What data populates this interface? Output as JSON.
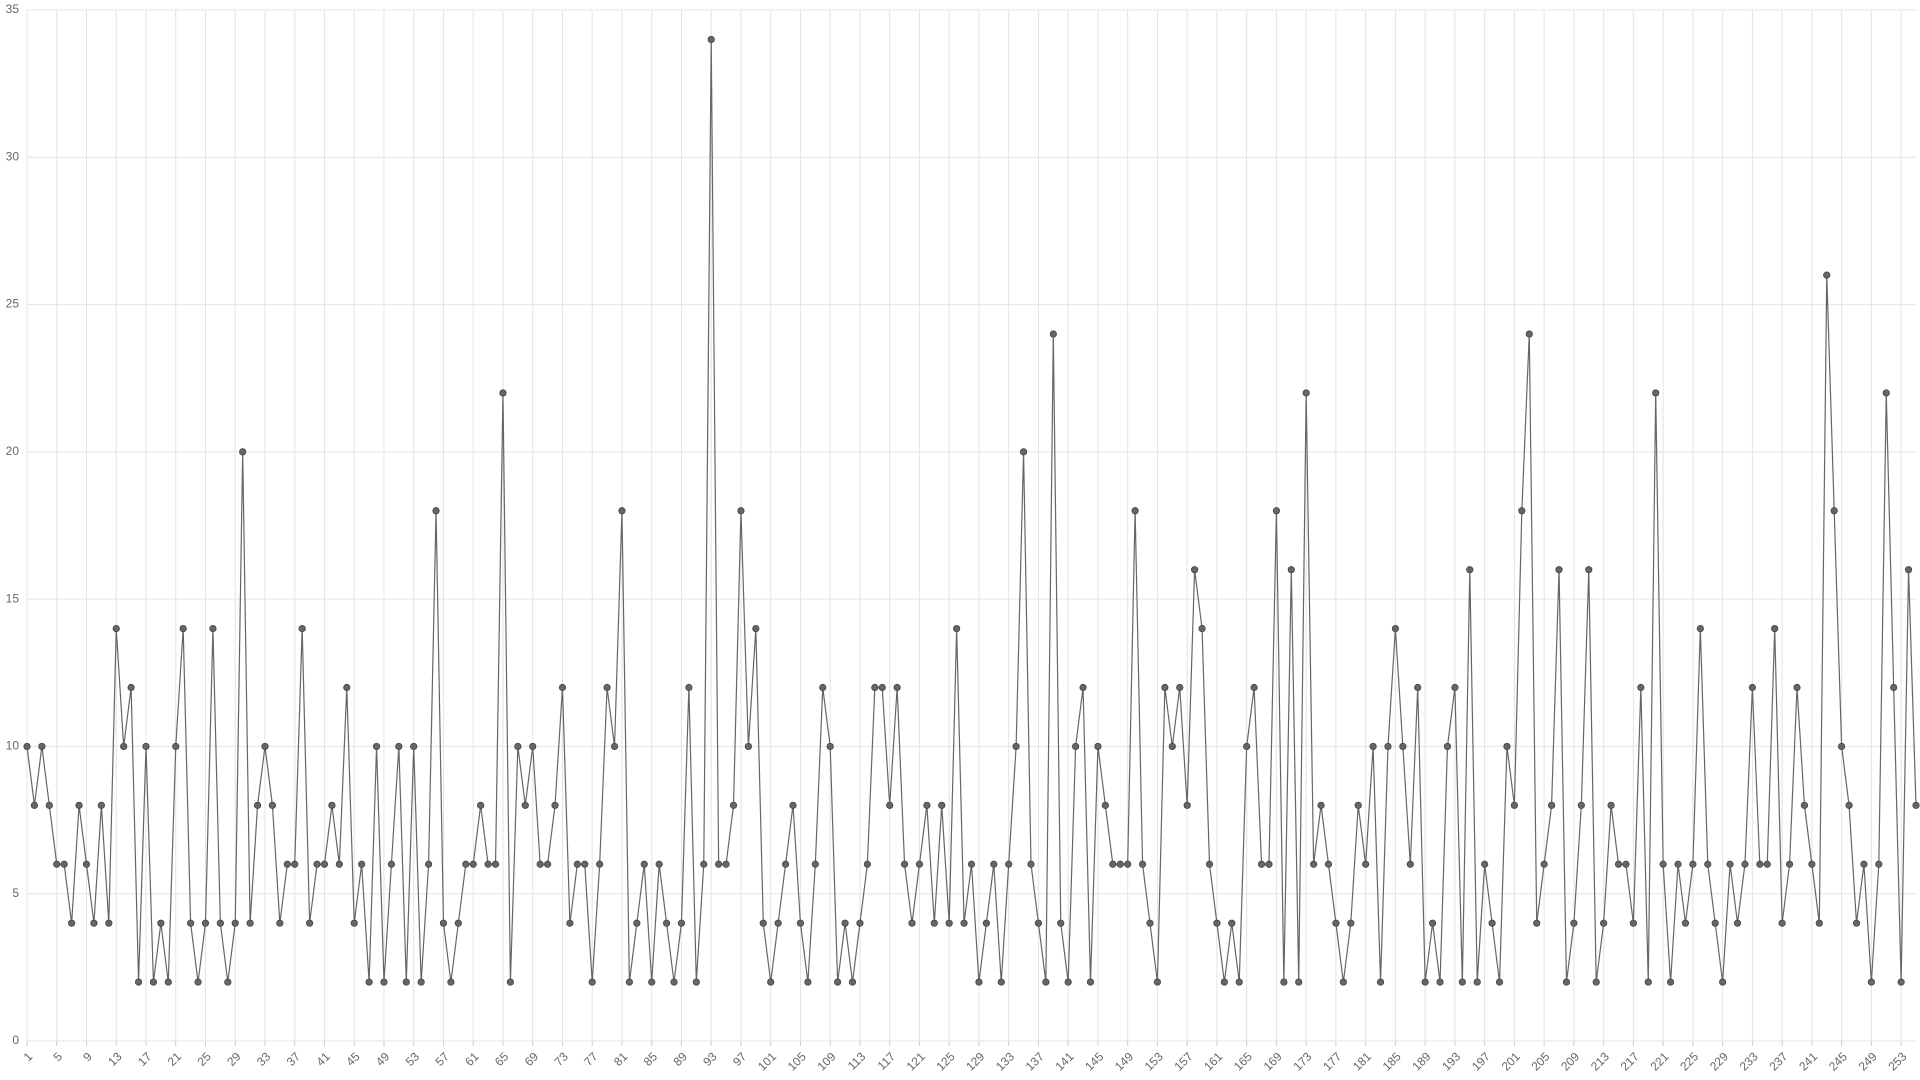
{
  "chart_data": {
    "type": "line",
    "x": [
      1,
      2,
      3,
      4,
      5,
      6,
      7,
      8,
      9,
      10,
      11,
      12,
      13,
      14,
      15,
      16,
      17,
      18,
      19,
      20,
      21,
      22,
      23,
      24,
      25,
      26,
      27,
      28,
      29,
      30,
      31,
      32,
      33,
      34,
      35,
      36,
      37,
      38,
      39,
      40,
      41,
      42,
      43,
      44,
      45,
      46,
      47,
      48,
      49,
      50,
      51,
      52,
      53,
      54,
      55,
      56,
      57,
      58,
      59,
      60,
      61,
      62,
      63,
      64,
      65,
      66,
      67,
      68,
      69,
      70,
      71,
      72,
      73,
      74,
      75,
      76,
      77,
      78,
      79,
      80,
      81,
      82,
      83,
      84,
      85,
      86,
      87,
      88,
      89,
      90,
      91,
      92,
      93,
      94,
      95,
      96,
      97,
      98,
      99,
      100,
      101,
      102,
      103,
      104,
      105,
      106,
      107,
      108,
      109,
      110,
      111,
      112,
      113,
      114,
      115,
      116,
      117,
      118,
      119,
      120,
      121,
      122,
      123,
      124,
      125,
      126,
      127,
      128,
      129,
      130,
      131,
      132,
      133,
      134,
      135,
      136,
      137,
      138,
      139,
      140,
      141,
      142,
      143,
      144,
      145,
      146,
      147,
      148,
      149,
      150,
      151,
      152,
      153,
      154,
      155,
      156,
      157,
      158,
      159,
      160,
      161,
      162,
      163,
      164,
      165,
      166,
      167,
      168,
      169,
      170,
      171,
      172,
      173,
      174,
      175,
      176,
      177,
      178,
      179,
      180,
      181,
      182,
      183,
      184,
      185,
      186,
      187,
      188,
      189,
      190,
      191,
      192,
      193,
      194,
      195,
      196,
      197,
      198,
      199,
      200,
      201,
      202,
      203,
      204,
      205,
      206,
      207,
      208,
      209,
      210,
      211,
      212,
      213,
      214,
      215,
      216,
      217,
      218,
      219,
      220,
      221,
      222,
      223,
      224,
      225,
      226,
      227,
      228,
      229,
      230,
      231,
      232,
      233,
      234,
      235,
      236,
      237,
      238,
      239,
      240,
      241,
      242,
      243,
      244,
      245,
      246,
      247,
      248,
      249,
      250,
      251,
      252,
      253,
      254,
      255
    ],
    "values": [
      10,
      8,
      10,
      8,
      6,
      6,
      4,
      8,
      6,
      4,
      8,
      4,
      14,
      10,
      12,
      2,
      10,
      2,
      4,
      2,
      10,
      14,
      4,
      2,
      4,
      14,
      4,
      2,
      4,
      20,
      4,
      8,
      10,
      8,
      4,
      6,
      6,
      14,
      4,
      6,
      6,
      8,
      6,
      12,
      4,
      6,
      2,
      10,
      2,
      6,
      10,
      2,
      10,
      2,
      6,
      18,
      4,
      2,
      4,
      6,
      6,
      8,
      6,
      6,
      22,
      2,
      10,
      8,
      10,
      6,
      6,
      8,
      12,
      4,
      6,
      6,
      2,
      6,
      12,
      10,
      18,
      2,
      4,
      6,
      2,
      6,
      4,
      2,
      4,
      12,
      2,
      6,
      34,
      6,
      6,
      8,
      18,
      10,
      14,
      4,
      2,
      4,
      6,
      8,
      4,
      2,
      6,
      12,
      10,
      2,
      4,
      2,
      4,
      6,
      12,
      12,
      8,
      12,
      6,
      4,
      6,
      8,
      4,
      8,
      4,
      14,
      4,
      6,
      2,
      4,
      6,
      2,
      6,
      10,
      20,
      6,
      4,
      2,
      24,
      4,
      2,
      10,
      12,
      2,
      10,
      8,
      6,
      6,
      6,
      18,
      6,
      4,
      2,
      12,
      10,
      12,
      8,
      16,
      14,
      6,
      4,
      2,
      4,
      2,
      10,
      12,
      6,
      6,
      18,
      2,
      16,
      2,
      22,
      6,
      8,
      6,
      4,
      2,
      4,
      8,
      6,
      10,
      2,
      10,
      14,
      10,
      6,
      12,
      2,
      4,
      2,
      10,
      12,
      2,
      16,
      2,
      6,
      4,
      2,
      10,
      8,
      18,
      24,
      4,
      6,
      8,
      16,
      2,
      4,
      8,
      16,
      2,
      4,
      8,
      6,
      6,
      4,
      12,
      2,
      22,
      6,
      2,
      6,
      4,
      6,
      14,
      6,
      4,
      2,
      6,
      4,
      6,
      12,
      6,
      6,
      14,
      4,
      6,
      12,
      8,
      6,
      4,
      26,
      18,
      10,
      8,
      4,
      6,
      2,
      6,
      22,
      12,
      2,
      16,
      8
    ],
    "color": "#666666",
    "xlim": [
      1,
      255
    ],
    "xticks": [
      1,
      5,
      9,
      13,
      17,
      21,
      25,
      29,
      33,
      37,
      41,
      45,
      49,
      53,
      57,
      61,
      65,
      69,
      73,
      77,
      81,
      85,
      89,
      93,
      97,
      101,
      105,
      109,
      113,
      117,
      121,
      125,
      129,
      133,
      137,
      141,
      145,
      149,
      153,
      157,
      161,
      165,
      169,
      173,
      177,
      181,
      185,
      189,
      193,
      197,
      201,
      205,
      209,
      213,
      217,
      221,
      225,
      229,
      233,
      237,
      241,
      245,
      249,
      253
    ],
    "ylim": [
      0,
      35
    ],
    "yticks": [
      0,
      5,
      10,
      15,
      20,
      25,
      30,
      35
    ],
    "grid": true
  }
}
